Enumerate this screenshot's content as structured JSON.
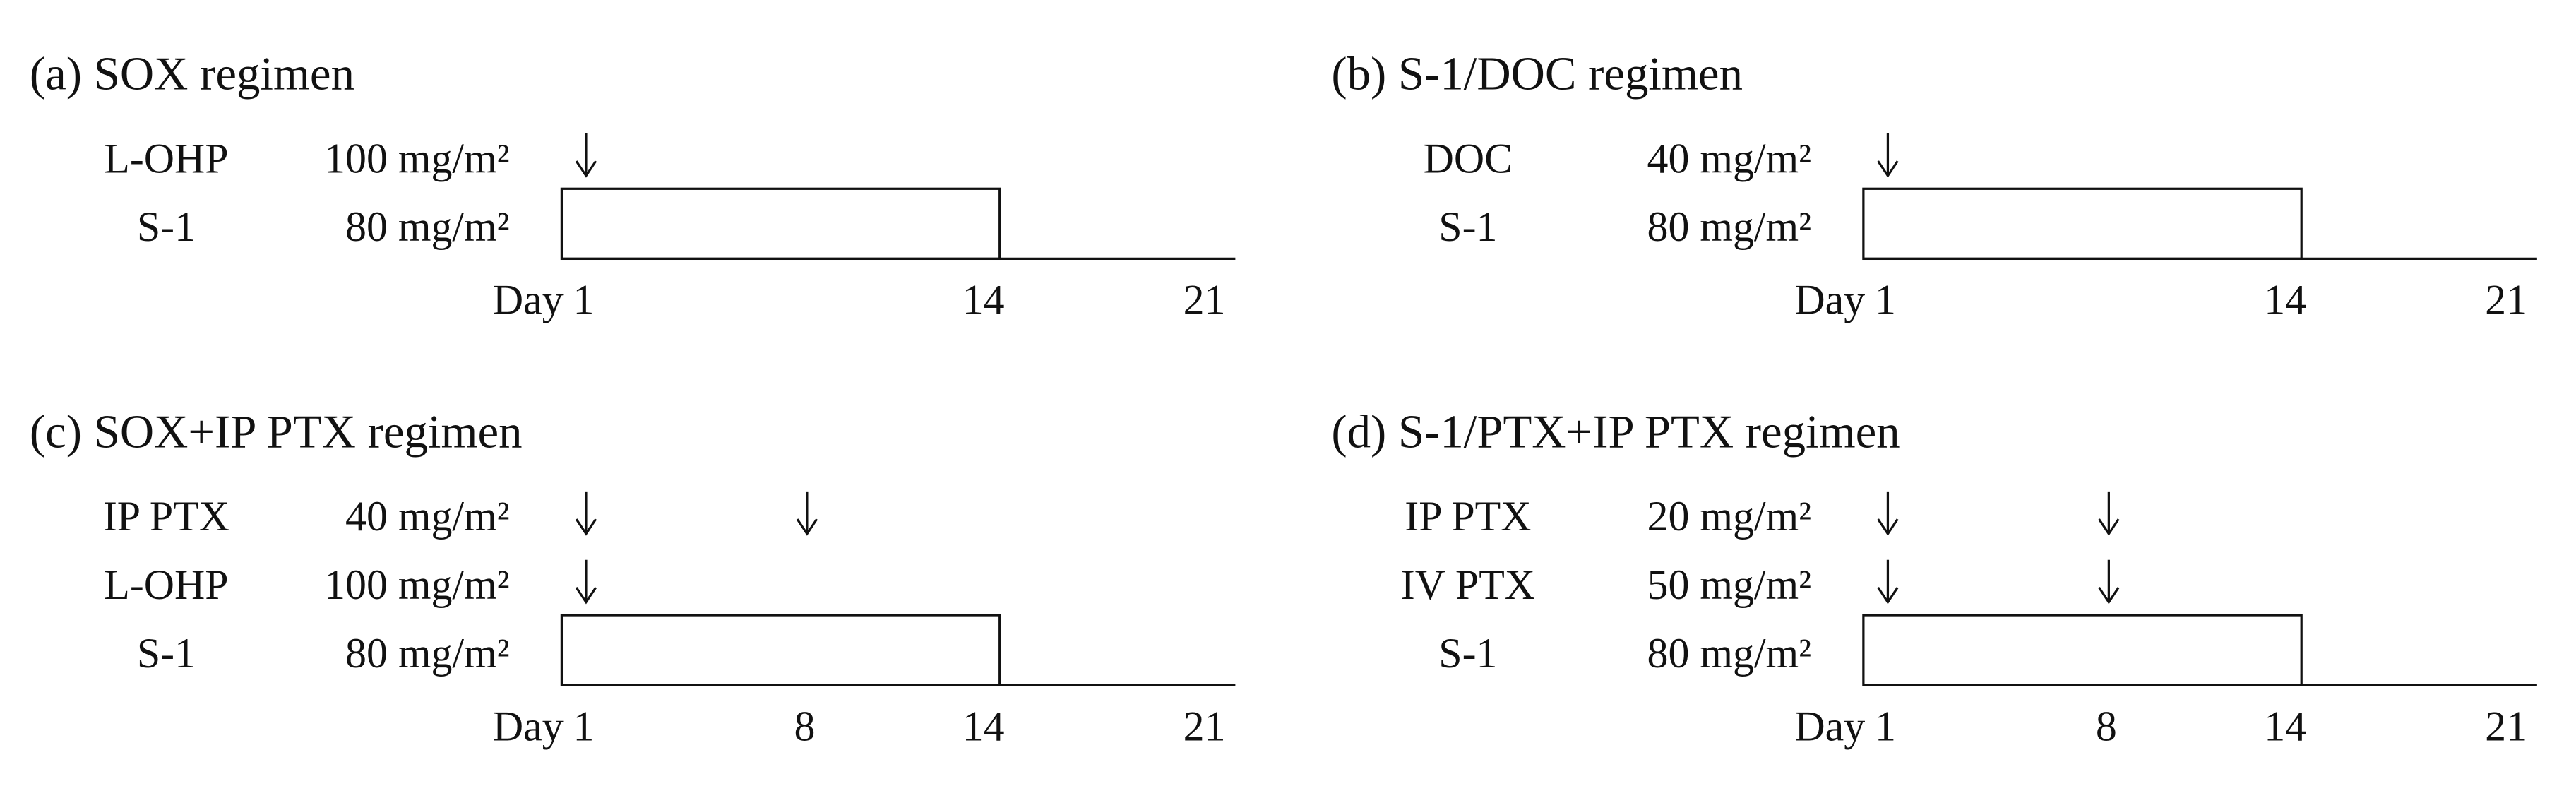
{
  "panels": [
    {
      "title": "(a) SOX regimen",
      "rows": [
        {
          "drug": "L-OHP",
          "dose": "100 mg/m²",
          "days": [
            1
          ]
        },
        {
          "drug": "S-1",
          "dose": "80 mg/m²",
          "days": [
            1,
            14
          ]
        }
      ],
      "axis": {
        "prefix": "Day",
        "ticks": [
          1,
          14,
          21
        ]
      }
    },
    {
      "title": "(b) S-1/DOC regimen",
      "rows": [
        {
          "drug": "DOC",
          "dose": "40 mg/m²",
          "days": [
            1
          ]
        },
        {
          "drug": "S-1",
          "dose": "80 mg/m²",
          "days": [
            1,
            14
          ]
        }
      ],
      "axis": {
        "prefix": "Day",
        "ticks": [
          1,
          14,
          21
        ]
      }
    },
    {
      "title": "(c) SOX+IP PTX regimen",
      "rows": [
        {
          "drug": "IP PTX",
          "dose": "40 mg/m²",
          "days": [
            1,
            8
          ]
        },
        {
          "drug": "L-OHP",
          "dose": "100 mg/m²",
          "days": [
            1
          ]
        },
        {
          "drug": "S-1",
          "dose": "80 mg/m²",
          "days": [
            1,
            14
          ]
        }
      ],
      "axis": {
        "prefix": "Day",
        "ticks": [
          1,
          8,
          14,
          21
        ]
      }
    },
    {
      "title": "(d) S-1/PTX+IP PTX regimen",
      "rows": [
        {
          "drug": "IP PTX",
          "dose": "20 mg/m²",
          "days": [
            1,
            8
          ]
        },
        {
          "drug": "IV PTX",
          "dose": "50 mg/m²",
          "days": [
            1,
            8
          ]
        },
        {
          "drug": "S-1",
          "dose": "80 mg/m²",
          "days": [
            1,
            14
          ]
        }
      ],
      "axis": {
        "prefix": "Day",
        "ticks": [
          1,
          8,
          14,
          21
        ]
      }
    }
  ]
}
